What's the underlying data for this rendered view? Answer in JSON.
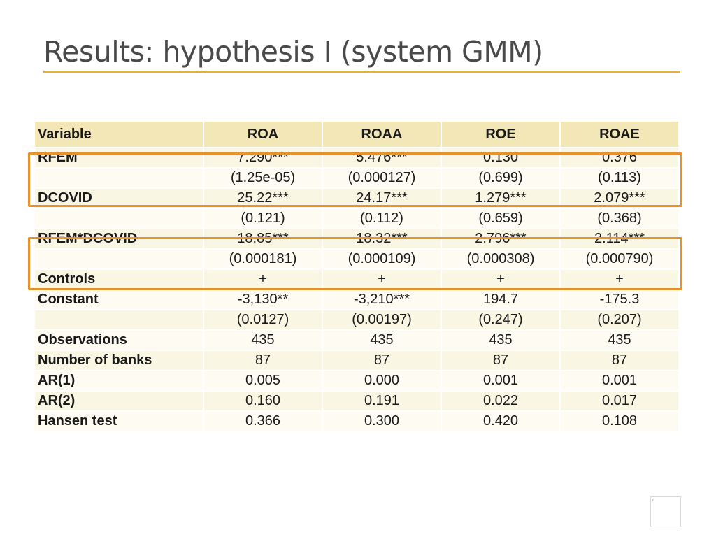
{
  "slide": {
    "title": "Results: hypothesis I (system GMM)",
    "page_mark": "r",
    "colors": {
      "accent_rule": "#e3b23c",
      "header_fill": "#f3e7b8",
      "highlight_border": "#e8932a"
    }
  },
  "table": {
    "headers": [
      "Variable",
      "ROA",
      "ROAA",
      "ROE",
      "ROAE"
    ],
    "rows": [
      [
        "RFEM",
        "7.290***",
        "5.476***",
        "0.130",
        "0.376"
      ],
      [
        "",
        "(1.25e-05)",
        "(0.000127)",
        "(0.699)",
        "(0.113)"
      ],
      [
        "DCOVID",
        "25.22***",
        "24.17***",
        "1.279***",
        "2.079***"
      ],
      [
        "",
        "(0.121)",
        "(0.112)",
        "(0.659)",
        "(0.368)"
      ],
      [
        "RFEM*DCOVID",
        "18.85***",
        "18.32***",
        "2.796***",
        "2.114***"
      ],
      [
        "",
        "(0.000181)",
        "(0.000109)",
        "(0.000308)",
        "(0.000790)"
      ],
      [
        "Controls",
        "+",
        "+",
        "+",
        "+"
      ],
      [
        "Constant",
        "-3,130**",
        "-3,210***",
        "194.7",
        "-175.3"
      ],
      [
        "",
        "(0.0127)",
        "(0.00197)",
        "(0.247)",
        "(0.207)"
      ],
      [
        "Observations",
        "435",
        "435",
        "435",
        "435"
      ],
      [
        "Number of banks",
        "87",
        "87",
        "87",
        "87"
      ],
      [
        "AR(1)",
        "0.005",
        "0.000",
        "0.001",
        "0.001"
      ],
      [
        "AR(2)",
        "0.160",
        "0.191",
        "0.022",
        "0.017"
      ],
      [
        "Hansen test",
        "0.366",
        "0.300",
        "0.420",
        "0.108"
      ]
    ]
  }
}
